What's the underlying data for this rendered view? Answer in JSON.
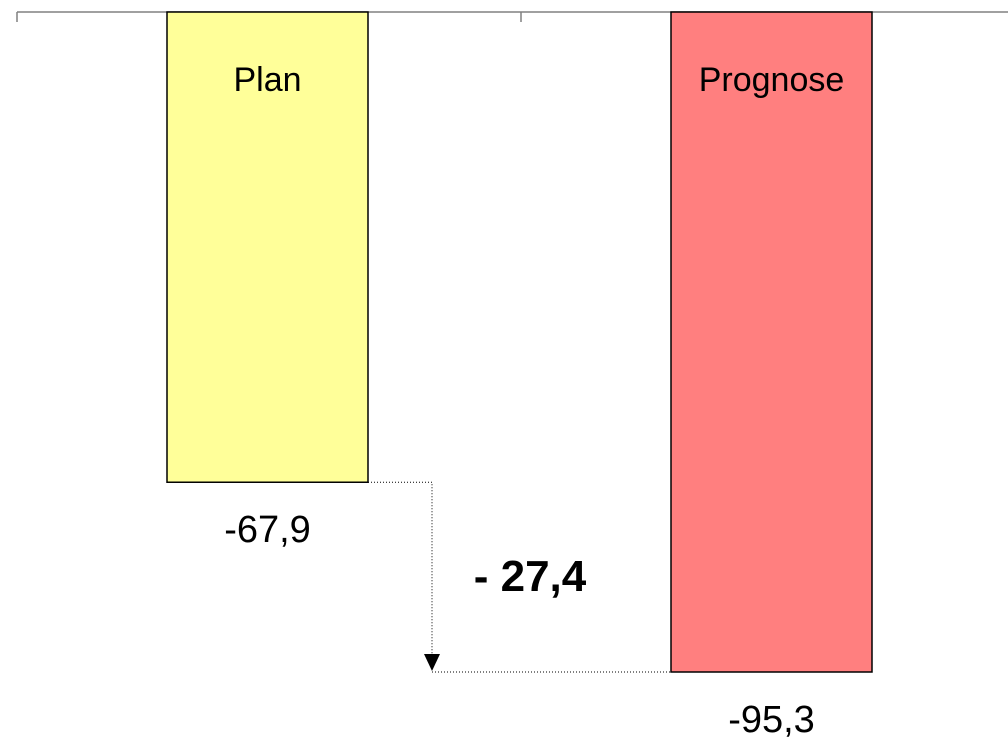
{
  "chart_data": {
    "type": "bar",
    "categories": [
      "Plan",
      "Prognose"
    ],
    "values": [
      -67.9,
      -95.3
    ],
    "value_labels": [
      "-67,9",
      "-95,3"
    ],
    "colors": [
      "#FFFF99",
      "#FF7F7F"
    ],
    "ylim": [
      -95.3,
      0
    ],
    "grid": false,
    "legend": "none",
    "annotations": [
      {
        "text": "- 27,4",
        "from": "Plan",
        "to": "Prognose",
        "value": -27.4
      }
    ]
  }
}
